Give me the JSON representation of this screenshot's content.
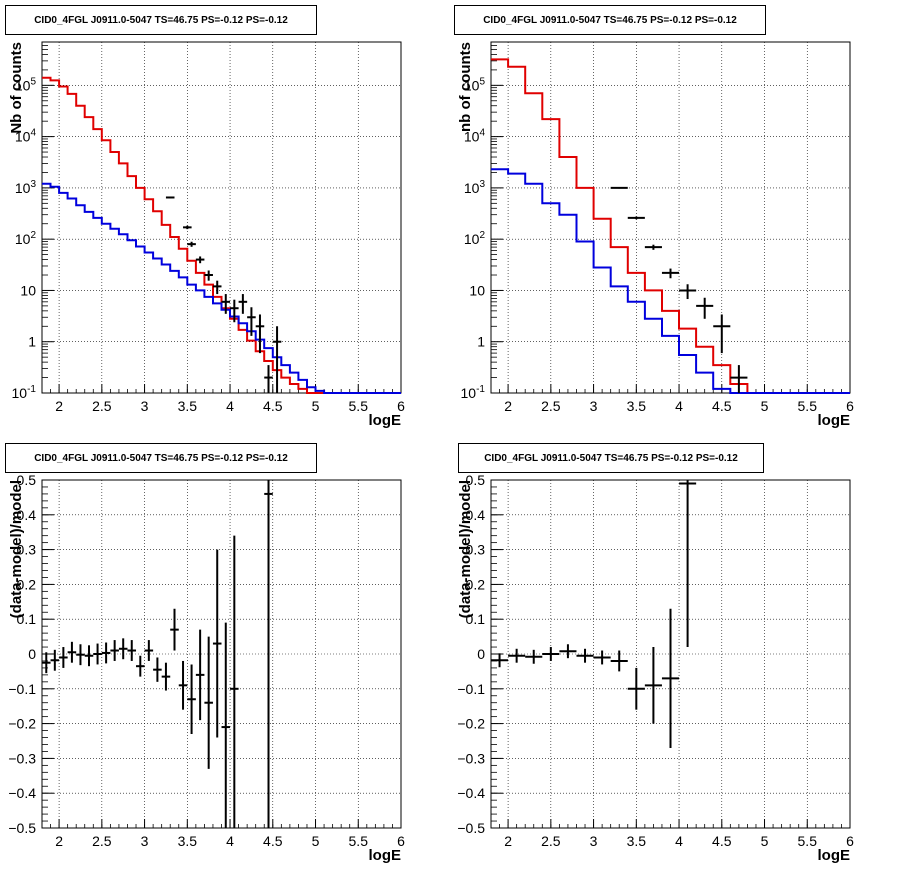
{
  "colors": {
    "total_model": "#e00000",
    "component_model": "#0000dd",
    "data": "#000000",
    "grid": "#000000"
  },
  "panels": [
    {
      "title": "CID0_4FGL J0911.0-5047 TS=46.75 PS=-0.12 PS=-0.12",
      "xlabel": "logE",
      "ylabel": "Nb of counts",
      "xticks": [
        "2",
        "2.5",
        "3",
        "3.5",
        "4",
        "4.5",
        "5",
        "5.5",
        "6"
      ],
      "yticks": [
        "10^-1",
        "1",
        "10",
        "10^2",
        "10^3",
        "10^4",
        "10^5"
      ]
    },
    {
      "title": "CID0_4FGL J0911.0-5047 TS=46.75 PS=-0.12 PS=-0.12",
      "xlabel": "logE",
      "ylabel": "nb of counts",
      "xticks": [
        "2",
        "2.5",
        "3",
        "3.5",
        "4",
        "4.5",
        "5",
        "5.5",
        "6"
      ],
      "yticks": [
        "10^-1",
        "1",
        "10",
        "10^2",
        "10^3",
        "10^4",
        "10^5"
      ]
    },
    {
      "title": "CID0_4FGL J0911.0-5047 TS=46.75 PS=-0.12 PS=-0.12",
      "xlabel": "logE",
      "ylabel": "(data-model)/model",
      "xticks": [
        "2",
        "2.5",
        "3",
        "3.5",
        "4",
        "4.5",
        "5",
        "5.5",
        "6"
      ],
      "yticks": [
        "−0.5",
        "−0.4",
        "−0.3",
        "−0.2",
        "−0.1",
        "0",
        "0.1",
        "0.2",
        "0.3",
        "0.4",
        "0.5"
      ]
    },
    {
      "title": "CID0_4FGL J0911.0-5047 TS=46.75 PS=-0.12 PS=-0.12",
      "xlabel": "logE",
      "ylabel": "(data-model)/model",
      "xticks": [
        "2",
        "2.5",
        "3",
        "3.5",
        "4",
        "4.5",
        "5",
        "5.5",
        "6"
      ],
      "yticks": [
        "−0.5",
        "−0.4",
        "−0.3",
        "−0.2",
        "−0.1",
        "0",
        "0.1",
        "0.2",
        "0.3",
        "0.4",
        "0.5"
      ]
    }
  ],
  "chart_data": [
    {
      "type": "line",
      "scale": "log",
      "xlim": [
        1.8,
        6.0
      ],
      "ylim": [
        0.1,
        700000
      ],
      "grid": true,
      "bin_edges": [
        1.8,
        1.9,
        2.0,
        2.1,
        2.2,
        2.3,
        2.4,
        2.5,
        2.6,
        2.7,
        2.8,
        2.9,
        3.0,
        3.1,
        3.2,
        3.3,
        3.4,
        3.5,
        3.6,
        3.7,
        3.8,
        3.9,
        4.0,
        4.1,
        4.2,
        4.3,
        4.4,
        4.5,
        4.6,
        4.7,
        4.8,
        4.9,
        5.0,
        5.1,
        5.2,
        5.3,
        5.4,
        5.5,
        5.6,
        5.7,
        5.8,
        5.9,
        6.0
      ],
      "series": [
        {
          "role": "total_model",
          "values": [
            140000,
            125000,
            95000,
            68000,
            40000,
            24000,
            14000,
            8500,
            5000,
            3000,
            1700,
            1000,
            600,
            350,
            190,
            110,
            65,
            38,
            22,
            13,
            7.5,
            4.5,
            2.8,
            1.7,
            1.05,
            0.65,
            0.42,
            0.28,
            0.2,
            0.15,
            0.12,
            0.1,
            0.1,
            0.1,
            0.1,
            0.1,
            0.1,
            0.1,
            0.1,
            0.1,
            0.1,
            0.1
          ]
        },
        {
          "role": "component_model",
          "values": [
            1200,
            1050,
            800,
            620,
            460,
            340,
            260,
            200,
            160,
            125,
            95,
            72,
            55,
            42,
            32,
            24,
            18,
            13,
            10,
            7.5,
            5.6,
            4.2,
            3.1,
            2.3,
            1.6,
            1.1,
            0.75,
            0.5,
            0.35,
            0.25,
            0.18,
            0.13,
            0.11,
            0.1,
            0.1,
            0.1,
            0.1,
            0.1,
            0.1,
            0.1,
            0.1,
            0.1
          ]
        }
      ],
      "data_points": [
        {
          "x": 3.3,
          "y": 650,
          "err": 25
        },
        {
          "x": 3.5,
          "y": 170,
          "err": 13
        },
        {
          "x": 3.55,
          "y": 80,
          "err": 9
        },
        {
          "x": 3.65,
          "y": 40,
          "err": 6
        },
        {
          "x": 3.75,
          "y": 20,
          "err": 4.5
        },
        {
          "x": 3.85,
          "y": 12,
          "err": 3.5
        },
        {
          "x": 3.95,
          "y": 6,
          "err": 2.5
        },
        {
          "x": 4.05,
          "y": 4.5,
          "err": 2.1
        },
        {
          "x": 4.15,
          "y": 6,
          "err": 2.5
        },
        {
          "x": 4.25,
          "y": 3,
          "err": 1.7
        },
        {
          "x": 4.35,
          "y": 2,
          "err": 1.4
        },
        {
          "x": 4.55,
          "y": 1,
          "err": 1.0
        },
        {
          "x": 4.45,
          "y": 0.2,
          "err": 0.15
        }
      ]
    },
    {
      "type": "line",
      "scale": "log",
      "xlim": [
        1.8,
        6.0
      ],
      "ylim": [
        0.1,
        700000
      ],
      "grid": true,
      "bin_edges": [
        1.8,
        2.0,
        2.2,
        2.4,
        2.6,
        2.8,
        3.0,
        3.2,
        3.4,
        3.6,
        3.8,
        4.0,
        4.2,
        4.4,
        4.6,
        4.8,
        5.0,
        5.2,
        5.4,
        5.6,
        5.8,
        6.0
      ],
      "series": [
        {
          "role": "total_model",
          "values": [
            320000,
            230000,
            70000,
            22000,
            4000,
            1000,
            250,
            70,
            22,
            10,
            4,
            1.8,
            0.8,
            0.35,
            0.15,
            0.1,
            0.1,
            0.1,
            0.1,
            0.1,
            0.1
          ]
        },
        {
          "role": "component_model",
          "values": [
            2300,
            1900,
            1200,
            500,
            300,
            90,
            28,
            12,
            6,
            2.8,
            1.3,
            0.55,
            0.25,
            0.12,
            0.1,
            0.1,
            0.1,
            0.1,
            0.1,
            0.1,
            0.1
          ]
        }
      ],
      "data_points": [
        {
          "x": 3.3,
          "y": 1000,
          "err": 31
        },
        {
          "x": 3.5,
          "y": 260,
          "err": 16
        },
        {
          "x": 3.7,
          "y": 70,
          "err": 8
        },
        {
          "x": 3.9,
          "y": 22,
          "err": 4.7
        },
        {
          "x": 4.1,
          "y": 10,
          "err": 3.2
        },
        {
          "x": 4.3,
          "y": 5,
          "err": 2.2
        },
        {
          "x": 4.5,
          "y": 2,
          "err": 1.4
        },
        {
          "x": 4.7,
          "y": 0.2,
          "err": 0.15
        }
      ]
    },
    {
      "type": "scatter",
      "xlim": [
        1.8,
        6.0
      ],
      "ylim": [
        -0.5,
        0.5
      ],
      "grid": true,
      "points": [
        {
          "x": 1.85,
          "y": -0.025,
          "err": 0.03
        },
        {
          "x": 1.95,
          "y": -0.018,
          "err": 0.03
        },
        {
          "x": 2.05,
          "y": -0.01,
          "err": 0.03
        },
        {
          "x": 2.15,
          "y": 0.005,
          "err": 0.03
        },
        {
          "x": 2.25,
          "y": -0.002,
          "err": 0.03
        },
        {
          "x": 2.35,
          "y": -0.005,
          "err": 0.03
        },
        {
          "x": 2.45,
          "y": 0.0,
          "err": 0.03
        },
        {
          "x": 2.55,
          "y": 0.003,
          "err": 0.03
        },
        {
          "x": 2.65,
          "y": 0.01,
          "err": 0.03
        },
        {
          "x": 2.75,
          "y": 0.015,
          "err": 0.03
        },
        {
          "x": 2.85,
          "y": 0.01,
          "err": 0.03
        },
        {
          "x": 2.95,
          "y": -0.035,
          "err": 0.03
        },
        {
          "x": 3.05,
          "y": 0.01,
          "err": 0.03
        },
        {
          "x": 3.15,
          "y": -0.045,
          "err": 0.035
        },
        {
          "x": 3.25,
          "y": -0.065,
          "err": 0.04
        },
        {
          "x": 3.35,
          "y": 0.07,
          "err": 0.06
        },
        {
          "x": 3.45,
          "y": -0.09,
          "err": 0.07
        },
        {
          "x": 3.55,
          "y": -0.13,
          "err": 0.1
        },
        {
          "x": 3.65,
          "y": -0.06,
          "err": 0.13
        },
        {
          "x": 3.75,
          "y": -0.14,
          "err": 0.19
        },
        {
          "x": 3.85,
          "y": 0.03,
          "err": 0.27
        },
        {
          "x": 3.95,
          "y": -0.21,
          "err": 0.3
        },
        {
          "x": 4.05,
          "y": -0.1,
          "err": 0.44
        },
        {
          "x": 4.45,
          "y": 0.46,
          "err": 0.96
        }
      ]
    },
    {
      "type": "scatter",
      "xlim": [
        1.8,
        6.0
      ],
      "ylim": [
        -0.5,
        0.5
      ],
      "grid": true,
      "points": [
        {
          "x": 1.9,
          "y": -0.018,
          "err": 0.02
        },
        {
          "x": 2.1,
          "y": -0.005,
          "err": 0.02
        },
        {
          "x": 2.3,
          "y": -0.008,
          "err": 0.02
        },
        {
          "x": 2.5,
          "y": 0.0,
          "err": 0.02
        },
        {
          "x": 2.7,
          "y": 0.008,
          "err": 0.02
        },
        {
          "x": 2.9,
          "y": -0.005,
          "err": 0.02
        },
        {
          "x": 3.1,
          "y": -0.01,
          "err": 0.02
        },
        {
          "x": 3.3,
          "y": -0.02,
          "err": 0.03
        },
        {
          "x": 3.5,
          "y": -0.1,
          "err": 0.06
        },
        {
          "x": 3.7,
          "y": -0.09,
          "err": 0.11
        },
        {
          "x": 3.9,
          "y": -0.07,
          "err": 0.2
        },
        {
          "x": 4.1,
          "y": 0.49,
          "err": 0.47
        }
      ]
    }
  ]
}
